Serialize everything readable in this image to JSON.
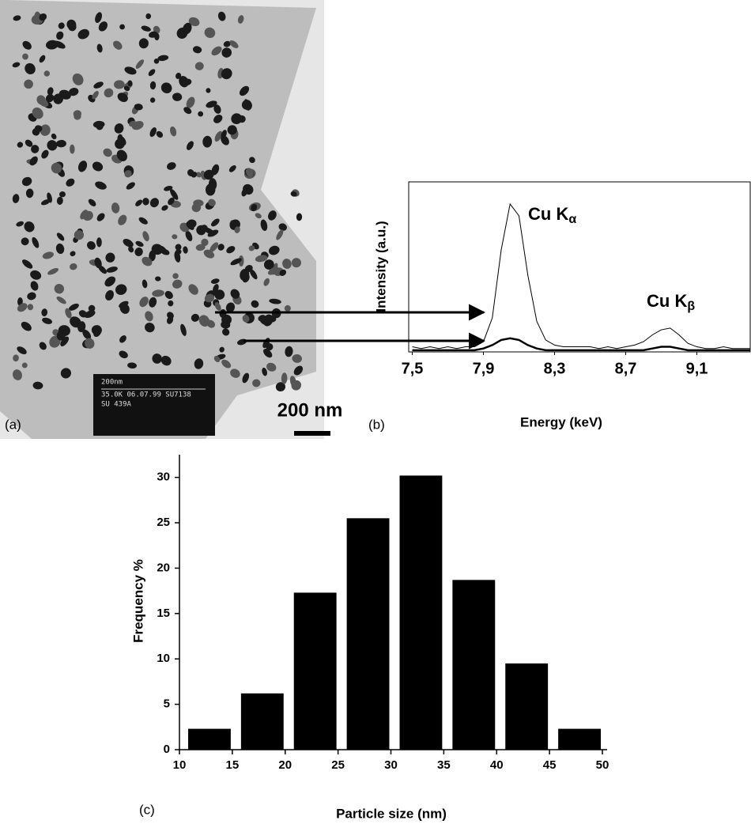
{
  "panel_a": {
    "label": "(a)",
    "scale_bar": "200 nm",
    "micrograph_text": [
      "200nm",
      "35.0K 06.07.99 SU7138",
      "SU 439A"
    ]
  },
  "chart_data": [
    {
      "type": "line",
      "panel_label": "(b)",
      "x_label": "Energy (keV)",
      "y_label": "Intensity (a.u.)",
      "annotations": [
        {
          "text": "Cu K",
          "subscript": "α"
        },
        {
          "text": "Cu K",
          "subscript": "β"
        }
      ],
      "x": [
        7.5,
        7.55,
        7.6,
        7.65,
        7.7,
        7.75,
        7.8,
        7.85,
        7.9,
        7.95,
        8.0,
        8.05,
        8.1,
        8.15,
        8.2,
        8.25,
        8.3,
        8.35,
        8.4,
        8.45,
        8.5,
        8.55,
        8.6,
        8.65,
        8.7,
        8.75,
        8.8,
        8.85,
        8.9,
        8.95,
        9.0,
        9.05,
        9.1,
        9.15,
        9.2,
        9.25,
        9.3,
        9.35,
        9.4
      ],
      "series": [
        {
          "color": "#000000",
          "values": [
            3,
            2,
            3,
            2,
            3,
            2,
            3,
            3,
            6,
            20,
            60,
            87,
            80,
            45,
            18,
            7,
            4,
            3,
            3,
            3,
            3,
            2,
            3,
            2,
            3,
            4,
            6,
            10,
            13,
            14,
            10,
            5,
            3,
            2,
            2,
            3,
            2,
            2,
            2
          ]
        },
        {
          "color": "#000000",
          "values": [
            1,
            1,
            1,
            1,
            1,
            1,
            1,
            1,
            2,
            4,
            7,
            8,
            7,
            4,
            2,
            1,
            1,
            1,
            1,
            1,
            1,
            1,
            1,
            1,
            1,
            1,
            1,
            2,
            3,
            3,
            2,
            1,
            1,
            1,
            1,
            1,
            1,
            1,
            1
          ]
        }
      ],
      "xlim": [
        7.48,
        9.4
      ],
      "ylim": [
        0,
        100
      ],
      "xticks": [
        {
          "value": 7.5,
          "label": "7,5"
        },
        {
          "value": 7.9,
          "label": "7,9"
        },
        {
          "value": 8.3,
          "label": "8,3"
        },
        {
          "value": 8.7,
          "label": "8,7"
        },
        {
          "value": 9.1,
          "label": "9,1"
        }
      ],
      "grid": false
    },
    {
      "type": "histogram",
      "panel_label": "(c)",
      "x_label": "Particle size (nm)",
      "y_label": "Frequency %",
      "bins": [
        10,
        15,
        20,
        25,
        30,
        35,
        40,
        45,
        50
      ],
      "values": [
        2.3,
        6.2,
        17.3,
        25.5,
        30.2,
        18.7,
        9.5,
        2.3
      ],
      "color": "#000000",
      "xlim": [
        10,
        50
      ],
      "ylim": [
        0,
        32.5
      ],
      "xticks": [
        10,
        15,
        20,
        25,
        30,
        35,
        40,
        45,
        50
      ],
      "yticks": [
        0,
        5,
        10,
        15,
        20,
        25,
        30
      ],
      "grid": false
    }
  ]
}
